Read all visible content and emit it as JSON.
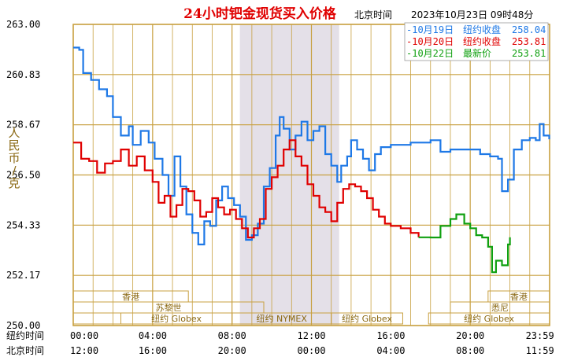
{
  "title": "24小时钯金现货买入价格",
  "header": {
    "tz": "北京时间",
    "datetime": "2023年10月23日 09时48分"
  },
  "y_axis_label": [
    "人",
    "民",
    "币",
    "/",
    "克"
  ],
  "row_labels": {
    "ny": "纽约时间",
    "bj": "北京时间"
  },
  "legend": [
    {
      "date": "-10月19日",
      "kind": "纽约收盘",
      "value": "258.04",
      "color": "#1e78e6"
    },
    {
      "date": "-10月20日",
      "kind": "纽约收盘",
      "value": "253.81",
      "color": "#e00000"
    },
    {
      "date": "-10月22日",
      "kind": "最新价",
      "value": "253.81",
      "color": "#10a010"
    }
  ],
  "markets": {
    "hongkong": [
      "香港",
      "香港"
    ],
    "paris": "苏黎世",
    "ny_globex": [
      "纽约 Globex",
      "纽约 Globex",
      "纽约 Globex"
    ],
    "nymex": "纽约 NYMEX",
    "sydney": "悉尼"
  },
  "colors": {
    "grid": "#c8a040",
    "frame": "#c8a040",
    "highlight": "#e4e0e8",
    "axis_label": "#8b6914"
  },
  "chart_data": {
    "type": "line",
    "ylim": [
      250.0,
      263.0
    ],
    "yticks": [
      "263.00",
      "260.83",
      "258.67",
      "256.50",
      "254.33",
      "252.17",
      "250.00"
    ],
    "x_ticks_ny": [
      "00:00",
      "04:00",
      "08:00",
      "12:00",
      "16:00",
      "20:00",
      "23:59"
    ],
    "x_ticks_bj": [
      "12:00",
      "16:00",
      "20:00",
      "00:00",
      "04:00",
      "08:00",
      "11:59"
    ],
    "x_hours": [
      0,
      4,
      8,
      12,
      16,
      20,
      23.983
    ],
    "highlight_hours": [
      8,
      13
    ],
    "series": [
      {
        "name": "10月19日",
        "color": "#1e78e6",
        "points": [
          [
            0,
            262.0
          ],
          [
            0.3,
            261.9
          ],
          [
            0.5,
            260.9
          ],
          [
            0.9,
            260.6
          ],
          [
            1.3,
            260.2
          ],
          [
            1.7,
            259.9
          ],
          [
            2.0,
            259.0
          ],
          [
            2.4,
            258.2
          ],
          [
            2.8,
            258.6
          ],
          [
            3.0,
            257.8
          ],
          [
            3.4,
            258.4
          ],
          [
            3.8,
            257.9
          ],
          [
            4.1,
            257.2
          ],
          [
            4.5,
            256.5
          ],
          [
            4.8,
            255.6
          ],
          [
            5.1,
            257.3
          ],
          [
            5.4,
            256.0
          ],
          [
            5.7,
            254.8
          ],
          [
            6.0,
            254.0
          ],
          [
            6.3,
            253.5
          ],
          [
            6.6,
            254.5
          ],
          [
            6.9,
            254.3
          ],
          [
            7.2,
            255.4
          ],
          [
            7.5,
            256.0
          ],
          [
            7.8,
            255.5
          ],
          [
            8.1,
            255.2
          ],
          [
            8.4,
            254.7
          ],
          [
            8.7,
            253.7
          ],
          [
            9.0,
            253.9
          ],
          [
            9.3,
            254.4
          ],
          [
            9.6,
            256.0
          ],
          [
            9.9,
            256.8
          ],
          [
            10.2,
            258.2
          ],
          [
            10.4,
            259.0
          ],
          [
            10.6,
            258.5
          ],
          [
            10.9,
            257.6
          ],
          [
            11.2,
            258.2
          ],
          [
            11.5,
            258.8
          ],
          [
            11.8,
            258.0
          ],
          [
            12.1,
            258.4
          ],
          [
            12.4,
            258.6
          ],
          [
            12.7,
            257.4
          ],
          [
            13.0,
            256.9
          ],
          [
            13.3,
            256.2
          ],
          [
            13.5,
            256.9
          ],
          [
            13.8,
            257.3
          ],
          [
            14.0,
            258.0
          ],
          [
            14.3,
            257.6
          ],
          [
            14.6,
            257.2
          ],
          [
            14.9,
            256.7
          ],
          [
            15.2,
            257.4
          ],
          [
            15.5,
            257.7
          ],
          [
            16.0,
            257.8
          ],
          [
            16.5,
            257.8
          ],
          [
            17.0,
            257.9
          ],
          [
            17.5,
            257.9
          ],
          [
            18.0,
            258.0
          ],
          [
            18.5,
            257.5
          ],
          [
            19.0,
            257.6
          ],
          [
            19.5,
            257.6
          ],
          [
            20.0,
            257.6
          ],
          [
            20.5,
            257.4
          ],
          [
            21.0,
            257.3
          ],
          [
            21.4,
            257.2
          ],
          [
            21.6,
            255.8
          ],
          [
            21.9,
            256.3
          ],
          [
            22.2,
            257.6
          ],
          [
            22.6,
            258.0
          ],
          [
            23.0,
            258.1
          ],
          [
            23.3,
            258.0
          ],
          [
            23.5,
            258.7
          ],
          [
            23.7,
            258.2
          ],
          [
            23.98,
            258.04
          ]
        ]
      },
      {
        "name": "10月20日",
        "color": "#e00000",
        "points": [
          [
            0,
            257.9
          ],
          [
            0.4,
            257.2
          ],
          [
            0.8,
            257.1
          ],
          [
            1.2,
            256.6
          ],
          [
            1.6,
            257.0
          ],
          [
            2.0,
            257.1
          ],
          [
            2.4,
            257.6
          ],
          [
            2.8,
            256.9
          ],
          [
            3.2,
            257.3
          ],
          [
            3.6,
            256.7
          ],
          [
            4.0,
            256.2
          ],
          [
            4.3,
            255.3
          ],
          [
            4.6,
            255.6
          ],
          [
            4.9,
            254.7
          ],
          [
            5.2,
            255.2
          ],
          [
            5.5,
            255.9
          ],
          [
            5.8,
            255.8
          ],
          [
            6.1,
            255.4
          ],
          [
            6.4,
            254.7
          ],
          [
            6.7,
            254.9
          ],
          [
            7.0,
            255.5
          ],
          [
            7.3,
            255.1
          ],
          [
            7.6,
            254.8
          ],
          [
            7.9,
            255.0
          ],
          [
            8.2,
            254.6
          ],
          [
            8.5,
            254.2
          ],
          [
            8.8,
            253.8
          ],
          [
            9.1,
            254.2
          ],
          [
            9.4,
            254.6
          ],
          [
            9.7,
            255.9
          ],
          [
            10.0,
            256.4
          ],
          [
            10.3,
            256.9
          ],
          [
            10.6,
            257.6
          ],
          [
            10.9,
            258.0
          ],
          [
            11.2,
            257.3
          ],
          [
            11.5,
            256.9
          ],
          [
            11.8,
            256.1
          ],
          [
            12.1,
            255.6
          ],
          [
            12.4,
            255.1
          ],
          [
            12.7,
            254.9
          ],
          [
            13.0,
            254.5
          ],
          [
            13.3,
            255.3
          ],
          [
            13.6,
            255.9
          ],
          [
            13.9,
            256.1
          ],
          [
            14.2,
            256.0
          ],
          [
            14.5,
            255.8
          ],
          [
            14.8,
            255.5
          ],
          [
            15.1,
            255.0
          ],
          [
            15.4,
            254.7
          ],
          [
            15.7,
            254.4
          ],
          [
            16.0,
            254.3
          ],
          [
            16.5,
            254.2
          ],
          [
            17.0,
            254.0
          ],
          [
            17.4,
            253.81
          ]
        ]
      },
      {
        "name": "10月22日",
        "color": "#10a010",
        "points": [
          [
            17.4,
            253.81
          ],
          [
            18.0,
            253.8
          ],
          [
            18.5,
            254.3
          ],
          [
            19.0,
            254.6
          ],
          [
            19.3,
            254.8
          ],
          [
            19.7,
            254.4
          ],
          [
            20.0,
            254.2
          ],
          [
            20.3,
            253.9
          ],
          [
            20.6,
            253.8
          ],
          [
            20.9,
            253.4
          ],
          [
            21.1,
            252.3
          ],
          [
            21.3,
            252.8
          ],
          [
            21.6,
            252.6
          ],
          [
            21.9,
            253.5
          ],
          [
            22.0,
            253.81
          ]
        ]
      }
    ]
  }
}
